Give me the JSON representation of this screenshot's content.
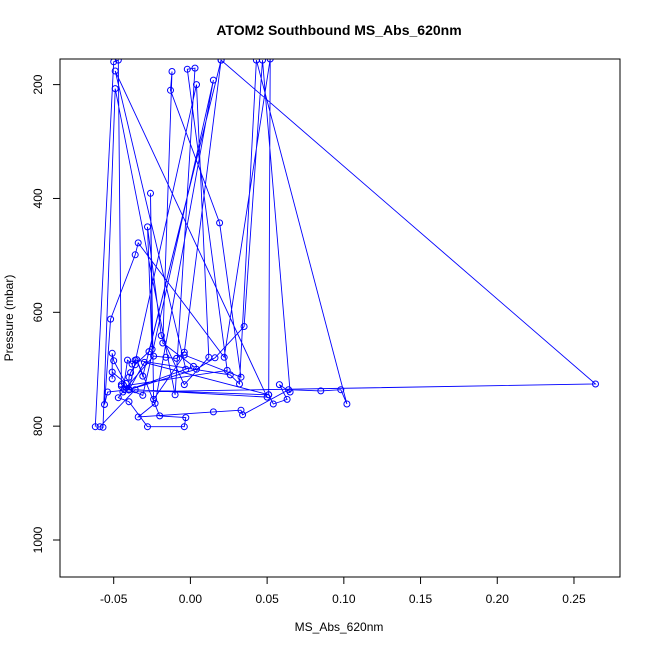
{
  "chart_data": {
    "type": "line",
    "title": "ATOM2 Southbound MS_Abs_620nm",
    "xlabel": "MS_Abs_620nm",
    "ylabel": "Pressure (mbar)",
    "xlim": [
      -0.085,
      0.28
    ],
    "ylim": [
      1065,
      155
    ],
    "y_reversed": true,
    "grid": false,
    "legend": "none",
    "x_ticks": [
      -0.05,
      0.0,
      0.05,
      0.1,
      0.15,
      0.2,
      0.25
    ],
    "x_tick_labels": [
      "-0.05",
      "0.00",
      "0.05",
      "0.10",
      "0.15",
      "0.20",
      "0.25"
    ],
    "y_ticks": [
      200,
      400,
      600,
      800,
      1000
    ],
    "y_tick_labels": [
      "200",
      "400",
      "600",
      "800",
      "1000"
    ],
    "series": [
      {
        "color": "#0000ff",
        "marker": "open-circle",
        "points": [
          [
            -0.062,
            801
          ],
          [
            -0.05,
            160
          ],
          [
            -0.047,
            157
          ],
          [
            -0.045,
            727
          ],
          [
            -0.04,
            736
          ],
          [
            0.051,
            745
          ],
          [
            0.052,
            155
          ],
          [
            0.022,
            679
          ],
          [
            -0.034,
            478
          ],
          [
            -0.036,
            499
          ],
          [
            -0.052,
            612
          ],
          [
            -0.056,
            762
          ],
          [
            -0.054,
            740
          ],
          [
            -0.04,
            736
          ],
          [
            -0.03,
            688
          ],
          [
            0.051,
            745
          ],
          [
            0.054,
            761
          ],
          [
            0.063,
            753
          ],
          [
            0.058,
            727
          ],
          [
            0.065,
            740
          ],
          [
            0.047,
            157
          ],
          [
            0.035,
            625
          ],
          [
            0.016,
            680
          ],
          [
            0.004,
            700
          ],
          [
            -0.04,
            736
          ],
          [
            -0.042,
            725
          ],
          [
            -0.051,
            705
          ],
          [
            -0.051,
            717
          ],
          [
            -0.051,
            672
          ],
          [
            -0.05,
            685
          ],
          [
            -0.04,
            736
          ],
          [
            -0.031,
            746
          ],
          [
            0.015,
            192
          ],
          [
            -0.023,
            760
          ],
          [
            -0.034,
            784
          ],
          [
            0.015,
            775
          ],
          [
            0.033,
            772
          ],
          [
            0.034,
            780
          ],
          [
            0.064,
            736
          ],
          [
            0.085,
            738
          ],
          [
            0.098,
            736
          ],
          [
            0.102,
            761
          ],
          [
            0.043,
            157
          ],
          [
            0.032,
            726
          ],
          [
            0.026,
            710
          ],
          [
            -0.036,
            684
          ],
          [
            -0.038,
            691
          ],
          [
            -0.041,
            684
          ],
          [
            -0.044,
            740
          ],
          [
            0.264,
            726
          ],
          [
            0.02,
            157
          ],
          [
            -0.004,
            670
          ],
          [
            -0.009,
            681
          ],
          [
            -0.016,
            679
          ],
          [
            -0.024,
            677
          ],
          [
            -0.043,
            736
          ],
          [
            -0.047,
            750
          ],
          [
            -0.04,
            757
          ],
          [
            -0.028,
            801
          ],
          [
            -0.004,
            801
          ],
          [
            -0.003,
            785
          ],
          [
            -0.02,
            782
          ],
          [
            -0.035,
            683
          ],
          [
            -0.031,
            712
          ],
          [
            0.02,
            157
          ],
          [
            -0.027,
            669
          ],
          [
            -0.036,
            692
          ],
          [
            -0.039,
            706
          ],
          [
            -0.04,
            714
          ],
          [
            -0.04,
            736
          ],
          [
            -0.04,
            736
          ],
          [
            0.002,
            695
          ],
          [
            -0.018,
            654
          ],
          [
            -0.012,
            177
          ],
          [
            -0.013,
            210
          ],
          [
            0.019,
            443
          ],
          [
            0.033,
            714
          ],
          [
            -0.004,
            675
          ],
          [
            -0.024,
            753
          ],
          [
            -0.026,
            391
          ],
          [
            -0.025,
            665
          ],
          [
            -0.028,
            450
          ],
          [
            -0.019,
            641
          ],
          [
            -0.004,
            727
          ],
          [
            0.012,
            679
          ],
          [
            0.004,
            200
          ],
          [
            -0.04,
            736
          ],
          [
            -0.045,
            730
          ],
          [
            0.024,
            702
          ],
          [
            -0.002,
            173
          ],
          [
            0.003,
            171
          ],
          [
            -0.01,
            745
          ],
          [
            -0.049,
            207
          ],
          [
            -0.057,
            802
          ],
          [
            -0.059,
            801
          ],
          [
            -0.036,
            736
          ],
          [
            0.05,
            749
          ],
          [
            -0.049,
            176
          ],
          [
            -0.003,
            700
          ]
        ]
      }
    ]
  }
}
